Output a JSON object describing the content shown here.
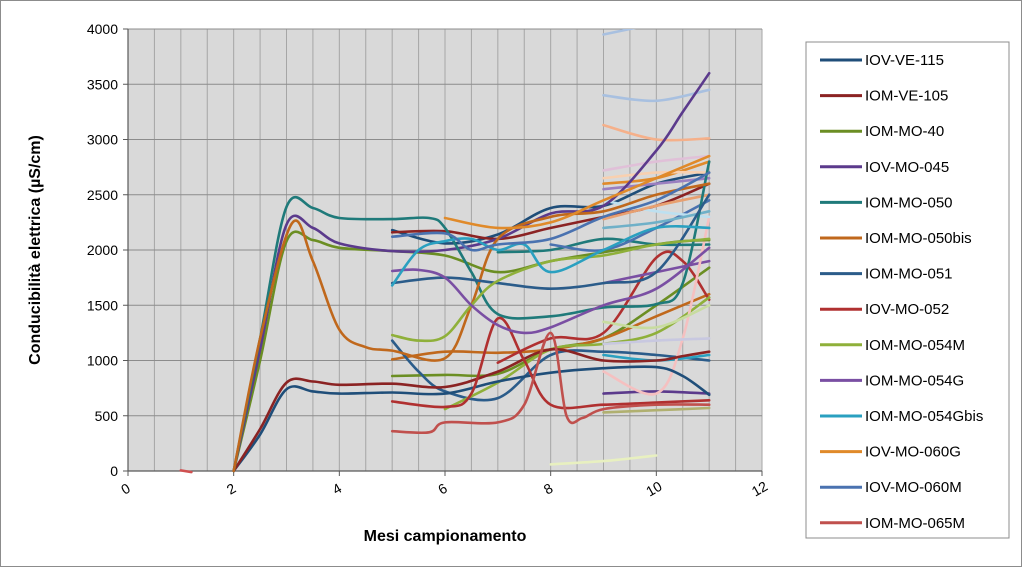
{
  "chart_data": {
    "type": "line",
    "title": "",
    "xlabel": "Mesi campionamento",
    "ylabel": "Conducibilità elettrica (µS/cm)",
    "xlim": [
      0,
      12
    ],
    "ylim": [
      0,
      4000
    ],
    "x_ticks": [
      "0",
      "2",
      "4",
      "6",
      "8",
      "10",
      "12"
    ],
    "y_ticks": [
      "0",
      "500",
      "1000",
      "1500",
      "2000",
      "2500",
      "3000",
      "3500",
      "4000"
    ],
    "grid": true,
    "legend_position": "right",
    "plot_background": "#d9d9d9",
    "series": [
      {
        "name": "IOV-VE-115",
        "color": "#1f4e79",
        "points": [
          [
            2,
            0
          ],
          [
            2.5,
            330
          ],
          [
            3,
            740
          ],
          [
            3.5,
            720
          ],
          [
            4,
            700
          ],
          [
            5,
            710
          ],
          [
            6,
            700
          ],
          [
            7,
            810
          ],
          [
            8,
            890
          ],
          [
            9,
            930
          ],
          [
            10,
            940
          ],
          [
            10.5,
            860
          ],
          [
            11,
            690
          ]
        ]
      },
      {
        "name": "IOM-VE-105",
        "color": "#8b2323",
        "points": [
          [
            2,
            0
          ],
          [
            2.5,
            380
          ],
          [
            3,
            800
          ],
          [
            3.5,
            810
          ],
          [
            4,
            780
          ],
          [
            5,
            790
          ],
          [
            6,
            760
          ],
          [
            7,
            900
          ],
          [
            8,
            1100
          ],
          [
            9,
            1000
          ],
          [
            10,
            1000
          ],
          [
            10.5,
            1040
          ],
          [
            11,
            1080
          ]
        ]
      },
      {
        "name": "IOM-MO-40",
        "color": "#6b8e23",
        "points": [
          [
            2,
            0
          ],
          [
            2.5,
            1000
          ],
          [
            3,
            2080
          ],
          [
            3.5,
            2090
          ],
          [
            4,
            2020
          ],
          [
            5,
            1990
          ],
          [
            6,
            1950
          ],
          [
            7,
            1800
          ],
          [
            8,
            1900
          ],
          [
            9,
            1980
          ],
          [
            10,
            2050
          ],
          [
            10.5,
            2080
          ],
          [
            11,
            2090
          ]
        ]
      },
      {
        "name": "IOV-MO-045",
        "color": "#5b3a8c",
        "points": [
          [
            2,
            0
          ],
          [
            2.5,
            1100
          ],
          [
            3,
            2230
          ],
          [
            3.5,
            2200
          ],
          [
            4,
            2060
          ],
          [
            5,
            1990
          ],
          [
            6,
            2000
          ],
          [
            7,
            2100
          ],
          [
            8,
            2330
          ],
          [
            9,
            2400
          ],
          [
            10,
            2900
          ],
          [
            10.5,
            3250
          ],
          [
            11,
            3600
          ]
        ]
      },
      {
        "name": "IOM-MO-050",
        "color": "#1f7a7a",
        "points": [
          [
            2,
            0
          ],
          [
            2.5,
            1200
          ],
          [
            3,
            2390
          ],
          [
            3.5,
            2380
          ],
          [
            4,
            2290
          ],
          [
            5,
            2280
          ],
          [
            5.7,
            2290
          ],
          [
            6,
            2200
          ],
          [
            6.5,
            1800
          ],
          [
            7,
            1420
          ],
          [
            8,
            1400
          ],
          [
            9,
            1480
          ],
          [
            10,
            1510
          ],
          [
            10.5,
            1700
          ],
          [
            11,
            2800
          ]
        ]
      },
      {
        "name": "IOM-MO-050bis",
        "color": "#c0681c",
        "points": [
          [
            2,
            0
          ],
          [
            2.5,
            1200
          ],
          [
            3.1,
            2240
          ],
          [
            3.5,
            1900
          ],
          [
            4,
            1280
          ],
          [
            4.5,
            1120
          ],
          [
            5,
            1090
          ],
          [
            6,
            1020
          ],
          [
            6.5,
            1500
          ],
          [
            7,
            2100
          ],
          [
            8,
            2300
          ],
          [
            9,
            2350
          ],
          [
            10,
            2500
          ],
          [
            11,
            2600
          ]
        ]
      },
      {
        "name": "IOM-MO-051",
        "color": "#2b5c8a",
        "points": [
          [
            5,
            1700
          ],
          [
            6,
            1750
          ],
          [
            7,
            1700
          ],
          [
            8,
            1650
          ],
          [
            9,
            1700
          ],
          [
            10,
            1800
          ],
          [
            11,
            2500
          ]
        ]
      },
      {
        "name": "IOV-MO-052",
        "color": "#b03030",
        "points": [
          [
            5,
            630
          ],
          [
            6,
            580
          ],
          [
            6.5,
            700
          ],
          [
            7,
            1380
          ],
          [
            7.5,
            1000
          ],
          [
            8,
            600
          ],
          [
            9,
            600
          ],
          [
            10,
            620
          ],
          [
            11,
            640
          ]
        ]
      },
      {
        "name": "IOM-MO-054M",
        "color": "#8fb03a",
        "points": [
          [
            5,
            1230
          ],
          [
            5.5,
            1180
          ],
          [
            6,
            1220
          ],
          [
            6.5,
            1500
          ],
          [
            7,
            1720
          ],
          [
            8,
            1900
          ],
          [
            9,
            1950
          ],
          [
            10,
            2050
          ],
          [
            11,
            2100
          ]
        ]
      },
      {
        "name": "IOM-MO-054G",
        "color": "#7a4fa3",
        "points": [
          [
            5,
            1810
          ],
          [
            5.5,
            1820
          ],
          [
            6,
            1750
          ],
          [
            6.5,
            1500
          ],
          [
            7,
            1320
          ],
          [
            7.5,
            1250
          ],
          [
            8,
            1300
          ],
          [
            9,
            1500
          ],
          [
            10,
            1650
          ],
          [
            11,
            2020
          ]
        ]
      },
      {
        "name": "IOM-MO-054Gbis",
        "color": "#2aa0c0",
        "points": [
          [
            5,
            1680
          ],
          [
            5.5,
            2000
          ],
          [
            6,
            2080
          ],
          [
            6.5,
            2100
          ],
          [
            7,
            2000
          ],
          [
            7.5,
            2050
          ],
          [
            8,
            1800
          ],
          [
            9,
            2000
          ],
          [
            10,
            2200
          ],
          [
            11,
            2200
          ]
        ]
      },
      {
        "name": "IOV-MO-060G",
        "color": "#e08a2a",
        "points": [
          [
            6,
            2290
          ],
          [
            7,
            2200
          ],
          [
            8,
            2250
          ],
          [
            9,
            2450
          ],
          [
            10,
            2650
          ],
          [
            11,
            2850
          ]
        ]
      },
      {
        "name": "IOV-MO-060M",
        "color": "#4a72b0",
        "points": [
          [
            5,
            2120
          ],
          [
            6,
            2150
          ],
          [
            6.5,
            2000
          ],
          [
            7,
            2050
          ],
          [
            8,
            2100
          ],
          [
            9,
            2300
          ],
          [
            10,
            2450
          ],
          [
            11,
            2700
          ]
        ]
      },
      {
        "name": "IOM-MO-065M",
        "color": "#c0504d",
        "points": [
          [
            5,
            360
          ],
          [
            5.7,
            350
          ],
          [
            6,
            440
          ],
          [
            7,
            440
          ],
          [
            7.5,
            600
          ],
          [
            8,
            1250
          ],
          [
            8.3,
            500
          ],
          [
            8.6,
            480
          ],
          [
            9,
            560
          ],
          [
            10,
            600
          ],
          [
            11,
            600
          ]
        ]
      }
    ],
    "unlabeled_series": [
      {
        "color": "#1f4e79",
        "points": [
          [
            5,
            2180
          ],
          [
            6,
            2060
          ],
          [
            7,
            2140
          ],
          [
            8,
            2380
          ],
          [
            9,
            2400
          ],
          [
            10,
            2600
          ],
          [
            11,
            2700
          ]
        ]
      },
      {
        "color": "#8b2323",
        "points": [
          [
            5,
            2160
          ],
          [
            6,
            2170
          ],
          [
            7,
            2100
          ],
          [
            8,
            2200
          ],
          [
            9,
            2300
          ],
          [
            10,
            2400
          ],
          [
            11,
            2600
          ]
        ]
      },
      {
        "color": "#6b8e23",
        "points": [
          [
            5,
            860
          ],
          [
            6,
            870
          ],
          [
            7,
            880
          ],
          [
            8,
            1100
          ],
          [
            9,
            1200
          ],
          [
            10,
            1500
          ],
          [
            11,
            1840
          ]
        ]
      },
      {
        "color": "#5b3a8c",
        "points": [
          [
            9,
            700
          ],
          [
            10,
            720
          ],
          [
            11,
            700
          ]
        ]
      },
      {
        "color": "#1f7a7a",
        "points": [
          [
            7,
            1980
          ],
          [
            8,
            2000
          ],
          [
            9,
            2100
          ],
          [
            10,
            2050
          ],
          [
            11,
            2050
          ]
        ]
      },
      {
        "color": "#c0681c",
        "points": [
          [
            5,
            1010
          ],
          [
            6,
            1080
          ],
          [
            7,
            1070
          ],
          [
            8,
            1100
          ],
          [
            9,
            1200
          ],
          [
            10,
            1400
          ],
          [
            11,
            1600
          ]
        ]
      },
      {
        "color": "#2b5c8a",
        "points": [
          [
            5,
            1180
          ],
          [
            5.5,
            900
          ],
          [
            6,
            720
          ],
          [
            7,
            660
          ],
          [
            8,
            1050
          ],
          [
            9,
            1080
          ],
          [
            10,
            1050
          ],
          [
            11,
            1000
          ]
        ]
      },
      {
        "color": "#b03030",
        "points": [
          [
            7,
            980
          ],
          [
            8,
            1200
          ],
          [
            9,
            1250
          ],
          [
            10,
            1930
          ],
          [
            10.5,
            1900
          ],
          [
            11,
            1550
          ]
        ]
      },
      {
        "color": "#8fb03a",
        "points": [
          [
            6,
            560
          ],
          [
            7,
            800
          ],
          [
            8,
            1100
          ],
          [
            9,
            1150
          ],
          [
            10,
            1250
          ],
          [
            11,
            1570
          ]
        ]
      },
      {
        "color": "#7a4fa3",
        "points": [
          [
            9,
            1700
          ],
          [
            10,
            1800
          ],
          [
            11,
            1900
          ]
        ]
      },
      {
        "color": "#2aa0c0",
        "points": [
          [
            9,
            1050
          ],
          [
            10,
            1000
          ],
          [
            11,
            1050
          ]
        ]
      },
      {
        "color": "#e08a2a",
        "points": [
          [
            9,
            2600
          ],
          [
            10,
            2650
          ],
          [
            11,
            2800
          ]
        ]
      },
      {
        "color": "#4a72b0",
        "points": [
          [
            8,
            2050
          ],
          [
            9,
            2000
          ],
          [
            10,
            2200
          ],
          [
            11,
            2450
          ]
        ]
      },
      {
        "color": "#a8c0e0",
        "points": [
          [
            9,
            3400
          ],
          [
            10,
            3350
          ],
          [
            11,
            3450
          ]
        ]
      },
      {
        "color": "#a8c0e0",
        "points": [
          [
            9,
            3950
          ],
          [
            10,
            4050
          ]
        ]
      },
      {
        "color": "#f5b08a",
        "points": [
          [
            9,
            3130
          ],
          [
            10,
            3000
          ],
          [
            11,
            3010
          ]
        ]
      },
      {
        "color": "#e0c0d8",
        "points": [
          [
            9,
            2720
          ],
          [
            10,
            2800
          ],
          [
            11,
            2850
          ]
        ]
      },
      {
        "color": "#f5c0c0",
        "points": [
          [
            9,
            900
          ],
          [
            10,
            700
          ],
          [
            10.5,
            1200
          ],
          [
            11,
            2300
          ]
        ]
      },
      {
        "color": "#c8dca0",
        "points": [
          [
            9,
            1350
          ],
          [
            10,
            1300
          ],
          [
            11,
            1500
          ]
        ]
      },
      {
        "color": "#c8c8e0",
        "points": [
          [
            9,
            1150
          ],
          [
            10,
            1180
          ],
          [
            11,
            1200
          ]
        ]
      },
      {
        "color": "#bde0f0",
        "points": [
          [
            9,
            2450
          ],
          [
            10,
            2350
          ],
          [
            11,
            2300
          ]
        ]
      },
      {
        "color": "#f8d0b0",
        "points": [
          [
            9,
            2650
          ],
          [
            10,
            2700
          ],
          [
            11,
            2700
          ]
        ]
      },
      {
        "color": "#b0b070",
        "points": [
          [
            9,
            530
          ],
          [
            10,
            550
          ],
          [
            11,
            570
          ]
        ]
      },
      {
        "color": "#e8f0c0",
        "points": [
          [
            8,
            60
          ],
          [
            9,
            90
          ],
          [
            10,
            140
          ]
        ]
      },
      {
        "color": "#9a7fc0",
        "points": [
          [
            9,
            2550
          ],
          [
            10,
            2600
          ],
          [
            11,
            2650
          ]
        ]
      },
      {
        "color": "#6fb0c8",
        "points": [
          [
            9,
            2200
          ],
          [
            10,
            2250
          ],
          [
            11,
            2350
          ]
        ]
      },
      {
        "color": "#e8a070",
        "points": [
          [
            9,
            2280
          ],
          [
            10,
            2400
          ],
          [
            11,
            2500
          ]
        ]
      },
      {
        "color": "#d05050",
        "points": [
          [
            1,
            5
          ],
          [
            1.2,
            -10
          ]
        ]
      }
    ]
  }
}
